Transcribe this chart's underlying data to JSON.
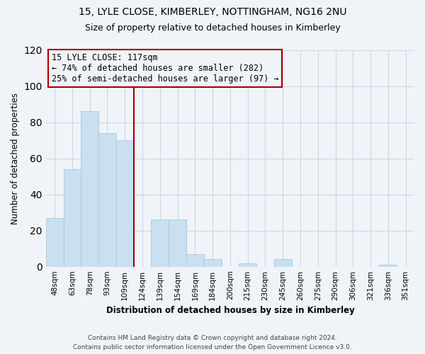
{
  "title": "15, LYLE CLOSE, KIMBERLEY, NOTTINGHAM, NG16 2NU",
  "subtitle": "Size of property relative to detached houses in Kimberley",
  "xlabel": "Distribution of detached houses by size in Kimberley",
  "ylabel": "Number of detached properties",
  "categories": [
    "48sqm",
    "63sqm",
    "78sqm",
    "93sqm",
    "109sqm",
    "124sqm",
    "139sqm",
    "154sqm",
    "169sqm",
    "184sqm",
    "200sqm",
    "215sqm",
    "230sqm",
    "245sqm",
    "260sqm",
    "275sqm",
    "290sqm",
    "306sqm",
    "321sqm",
    "336sqm",
    "351sqm"
  ],
  "values": [
    27,
    54,
    86,
    74,
    70,
    0,
    26,
    26,
    7,
    4,
    0,
    2,
    0,
    4,
    0,
    0,
    0,
    0,
    0,
    1,
    0
  ],
  "bar_color": "#c9e0f0",
  "bar_edge_color": "#a8c8e0",
  "annotation_line1": "15 LYLE CLOSE: 117sqm",
  "annotation_line2": "← 74% of detached houses are smaller (282)",
  "annotation_line3": "25% of semi-detached houses are larger (97) →",
  "marker_color": "#aa0000",
  "ylim": [
    0,
    120
  ],
  "yticks": [
    0,
    20,
    40,
    60,
    80,
    100,
    120
  ],
  "footer_line1": "Contains HM Land Registry data © Crown copyright and database right 2024.",
  "footer_line2": "Contains public sector information licensed under the Open Government Licence v3.0.",
  "background_color": "#f0f4f8",
  "grid_color": "#c8d8e8",
  "title_fontsize": 10,
  "subtitle_fontsize": 9,
  "axis_label_fontsize": 8.5,
  "tick_fontsize": 7.5,
  "annotation_fontsize": 8.5,
  "footer_fontsize": 6.5
}
